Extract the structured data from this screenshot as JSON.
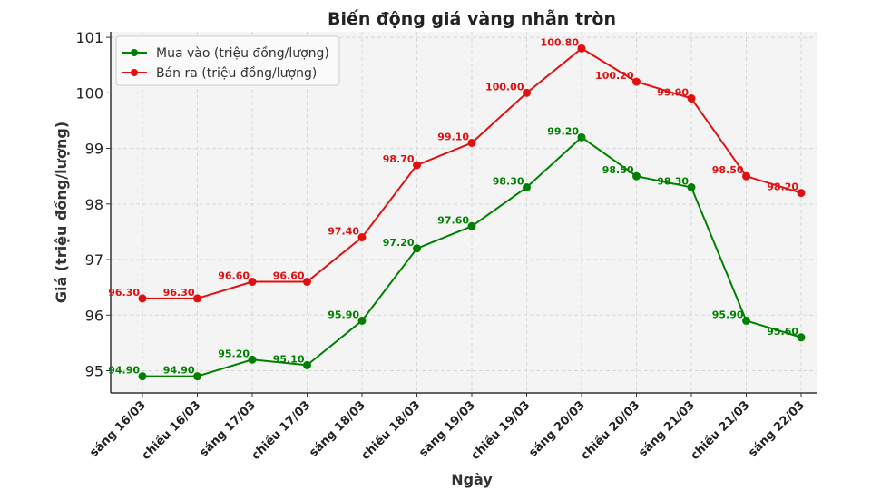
{
  "chart_data": {
    "type": "line",
    "title": "Biến động giá vàng nhẫn tròn",
    "xlabel": "Ngày",
    "ylabel": "Giá (triệu đồng/lượng)",
    "categories": [
      "sáng 16/03",
      "chiều 16/03",
      "sáng 17/03",
      "chiều 17/03",
      "sáng 18/03",
      "chiều 18/03",
      "sáng 19/03",
      "chiều 19/03",
      "sáng 20/03",
      "chiều 20/03",
      "sáng 21/03",
      "chiều 21/03",
      "sáng 22/03"
    ],
    "series": [
      {
        "name": "Mua vào (triệu đồng/lượng)",
        "color": "#008000",
        "values": [
          94.9,
          94.9,
          95.2,
          95.1,
          95.9,
          97.2,
          97.6,
          98.3,
          99.2,
          98.5,
          98.3,
          95.9,
          95.6
        ]
      },
      {
        "name": "Bán ra (triệu đồng/lượng)",
        "color": "#e01010",
        "values": [
          96.3,
          96.3,
          96.6,
          96.6,
          97.4,
          98.7,
          99.1,
          100.0,
          100.8,
          100.2,
          99.9,
          98.5,
          98.2
        ]
      }
    ],
    "ylim": [
      94.6,
      101.1
    ],
    "yticks": [
      95,
      96,
      97,
      98,
      99,
      100,
      101
    ],
    "grid": true,
    "legend_placement": "top-left"
  }
}
